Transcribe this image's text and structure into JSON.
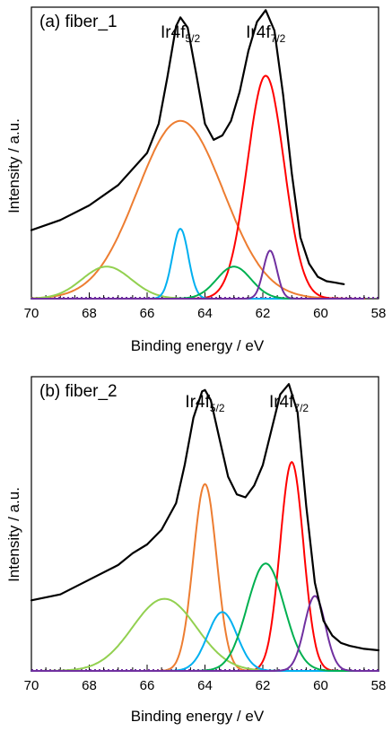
{
  "chart_data": [
    {
      "type": "line",
      "panel_label": "(a) fiber_1",
      "xlabel": "Binding energy / eV",
      "ylabel": "Intensity / a.u.",
      "xlim": [
        70,
        58
      ],
      "x_reversed": true,
      "x_ticks": [
        70,
        68,
        66,
        64,
        62,
        60,
        58
      ],
      "ylim": [
        0,
        1
      ],
      "y_ticks_shown": false,
      "annotations": [
        {
          "base": "Ir4f",
          "sub": "5/2",
          "x": 64.85
        },
        {
          "base": "Ir4f",
          "sub": "7/2",
          "x": 61.9
        }
      ],
      "baseline_color": "#7030a0",
      "series": [
        {
          "color": "#000000",
          "width": 2.2,
          "x": [
            70,
            69,
            68,
            67,
            66,
            65.6,
            65.3,
            65.0,
            64.85,
            64.6,
            64.3,
            64.0,
            63.7,
            63.4,
            63.1,
            62.8,
            62.5,
            62.2,
            61.9,
            61.6,
            61.3,
            61.0,
            60.7,
            60.4,
            60.1,
            59.8,
            59.5,
            59.2
          ],
          "y": [
            0.235,
            0.27,
            0.32,
            0.39,
            0.5,
            0.6,
            0.76,
            0.935,
            0.965,
            0.93,
            0.77,
            0.6,
            0.545,
            0.56,
            0.61,
            0.71,
            0.85,
            0.95,
            0.99,
            0.92,
            0.7,
            0.43,
            0.21,
            0.12,
            0.075,
            0.06,
            0.055,
            0.05
          ]
        },
        {
          "color": "#ed7d31",
          "width": 2.0,
          "center": 64.85,
          "amplitude": 0.61,
          "fwhm": 3.5,
          "range": [
            70,
            58.5
          ]
        },
        {
          "color": "#ff0000",
          "width": 2.0,
          "center": 61.9,
          "amplitude": 0.765,
          "fwhm": 1.5,
          "range": [
            64.5,
            58.5
          ]
        },
        {
          "color": "#92d050",
          "width": 2.0,
          "center": 67.4,
          "amplitude": 0.11,
          "fwhm": 2.0,
          "range": [
            70,
            58.5
          ]
        },
        {
          "color": "#00b0f0",
          "width": 2.0,
          "center": 64.85,
          "amplitude": 0.24,
          "fwhm": 0.65,
          "range": [
            70,
            58.5
          ]
        },
        {
          "color": "#00b050",
          "width": 2.0,
          "center": 63.0,
          "amplitude": 0.11,
          "fwhm": 1.4,
          "range": [
            70,
            58.5
          ]
        },
        {
          "color": "#7030a0",
          "width": 2.0,
          "center": 61.75,
          "amplitude": 0.165,
          "fwhm": 0.55,
          "range": [
            70,
            58.5
          ]
        }
      ]
    },
    {
      "type": "line",
      "panel_label": "(b) fiber_2",
      "xlabel": "Binding energy / eV",
      "ylabel": "Intensity / a.u.",
      "xlim": [
        70,
        58
      ],
      "x_reversed": true,
      "x_ticks": [
        70,
        68,
        66,
        64,
        62,
        60,
        58
      ],
      "ylim": [
        0,
        1
      ],
      "y_ticks_shown": false,
      "annotations": [
        {
          "base": "Ir4f",
          "sub": "5/2",
          "x": 64.0
        },
        {
          "base": "Ir4f",
          "sub": "7/2",
          "x": 61.1
        }
      ],
      "baseline_color": "#7030a0",
      "series": [
        {
          "color": "#000000",
          "width": 2.2,
          "x": [
            70,
            69,
            68,
            67,
            66.5,
            66,
            65.5,
            65,
            64.7,
            64.4,
            64.1,
            64.0,
            63.8,
            63.5,
            63.2,
            62.9,
            62.6,
            62.3,
            62.0,
            61.7,
            61.4,
            61.1,
            60.8,
            60.5,
            60.2,
            59.9,
            59.6,
            59.3,
            59,
            58.5,
            58
          ],
          "y": [
            0.24,
            0.26,
            0.31,
            0.36,
            0.4,
            0.43,
            0.48,
            0.57,
            0.7,
            0.86,
            0.95,
            0.955,
            0.92,
            0.79,
            0.66,
            0.6,
            0.59,
            0.63,
            0.7,
            0.82,
            0.94,
            0.975,
            0.88,
            0.56,
            0.3,
            0.17,
            0.12,
            0.095,
            0.085,
            0.075,
            0.07
          ]
        },
        {
          "color": "#ed7d31",
          "width": 2.0,
          "center": 64.0,
          "amplitude": 0.635,
          "fwhm": 0.95,
          "range": [
            70,
            58
          ]
        },
        {
          "color": "#ff0000",
          "width": 2.0,
          "center": 61.0,
          "amplitude": 0.71,
          "fwhm": 0.95,
          "range": [
            70,
            58
          ]
        },
        {
          "color": "#92d050",
          "width": 2.0,
          "center": 65.4,
          "amplitude": 0.245,
          "fwhm": 2.6,
          "range": [
            70,
            58
          ]
        },
        {
          "color": "#00b0f0",
          "width": 2.0,
          "center": 63.4,
          "amplitude": 0.2,
          "fwhm": 1.2,
          "range": [
            70,
            58
          ]
        },
        {
          "color": "#00b050",
          "width": 2.0,
          "center": 61.9,
          "amplitude": 0.365,
          "fwhm": 1.5,
          "range": [
            70,
            58
          ]
        },
        {
          "color": "#7030a0",
          "width": 2.0,
          "center": 60.2,
          "amplitude": 0.255,
          "fwhm": 0.85,
          "range": [
            70,
            58
          ]
        }
      ]
    }
  ]
}
